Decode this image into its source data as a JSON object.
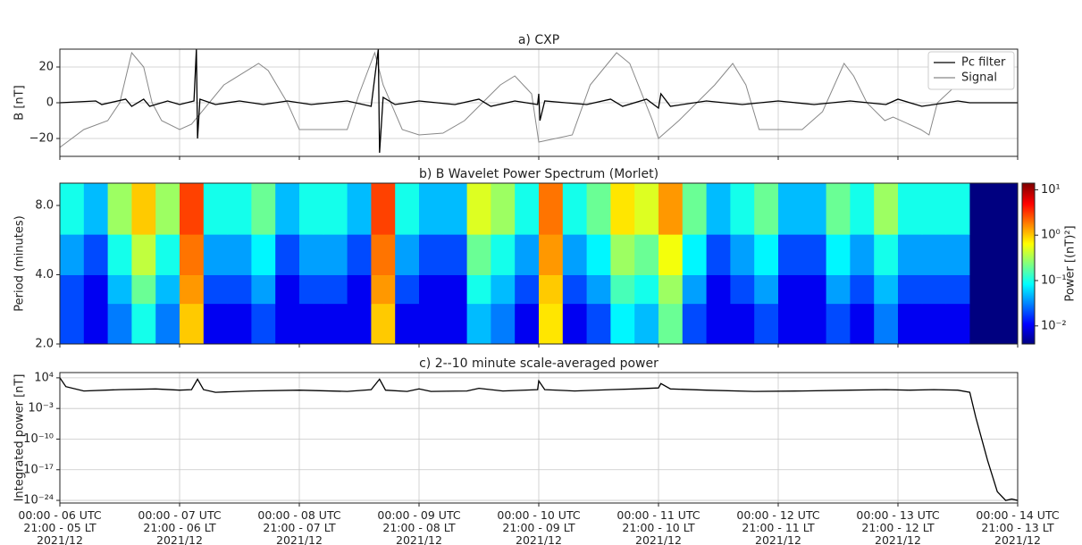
{
  "chart_data": [
    {
      "type": "line",
      "title": "a) CXP",
      "ylabel": "B [nT]",
      "xlim": [
        0,
        8
      ],
      "xticks": [
        0,
        1,
        2,
        3,
        4,
        5,
        6,
        7,
        8
      ],
      "ylim": [
        -30,
        30
      ],
      "yticks": [
        {
          "value": -20,
          "label": "−20"
        },
        0,
        20
      ],
      "grid": true,
      "legend": "upper right",
      "series": [
        {
          "name": "Pc filter",
          "color": "#000000",
          "x": [
            0,
            0.3,
            0.35,
            0.55,
            0.6,
            0.7,
            0.75,
            0.9,
            1.0,
            1.12,
            1.14,
            1.15,
            1.17,
            1.3,
            1.5,
            1.7,
            1.9,
            2.1,
            2.4,
            2.6,
            2.66,
            2.67,
            2.7,
            2.8,
            3.0,
            3.3,
            3.5,
            3.6,
            3.8,
            3.99,
            4.0,
            4.01,
            4.05,
            4.4,
            4.6,
            4.7,
            4.9,
            5.0,
            5.02,
            5.1,
            5.4,
            5.7,
            6.0,
            6.3,
            6.6,
            6.9,
            7.0,
            7.2,
            7.5,
            7.6,
            8
          ],
          "values": [
            0,
            1,
            -1,
            2,
            -2,
            2,
            -2,
            1,
            -1,
            1,
            30,
            -20,
            2,
            -1,
            1,
            -1,
            1,
            -1,
            1,
            -2,
            30,
            -28,
            3,
            -1,
            1,
            -1,
            2,
            -2,
            1,
            -1,
            5,
            -10,
            1,
            -1,
            2,
            -2,
            2,
            -3,
            5,
            -2,
            1,
            -1,
            1,
            -1,
            1,
            -1,
            2,
            -2,
            1,
            0,
            0
          ]
        },
        {
          "name": "Signal",
          "color": "#888888",
          "x": [
            0,
            0.2,
            0.4,
            0.5,
            0.6,
            0.7,
            0.77,
            0.85,
            1.0,
            1.1,
            1.37,
            1.66,
            1.74,
            1.9,
            2.0,
            2.4,
            2.5,
            2.63,
            2.7,
            2.86,
            3.0,
            3.2,
            3.38,
            3.53,
            3.68,
            3.8,
            3.94,
            4.0,
            4.28,
            4.43,
            4.65,
            4.76,
            4.95,
            5.0,
            5.17,
            5.47,
            5.62,
            5.73,
            5.84,
            6.2,
            6.37,
            6.55,
            6.63,
            6.74,
            6.89,
            6.96,
            7.19,
            7.26,
            7.33,
            7.49,
            7.6
          ],
          "values": [
            -25,
            -15,
            -10,
            0,
            28,
            20,
            0,
            -10,
            -15,
            -12,
            10,
            22,
            18,
            0,
            -15,
            -15,
            5,
            28,
            10,
            -15,
            -18,
            -17,
            -10,
            0,
            10,
            15,
            5,
            -22,
            -18,
            10,
            28,
            22,
            -10,
            -20,
            -10,
            10,
            22,
            10,
            -15,
            -15,
            -5,
            22,
            15,
            0,
            -10,
            -8,
            -15,
            -18,
            0,
            10,
            15
          ]
        }
      ]
    },
    {
      "type": "heatmap",
      "title": "b) B Wavelet Power Spectrum (Morlet)",
      "ylabel": "Period (minutes)",
      "xlim": [
        0,
        8
      ],
      "xticks": [
        0,
        1,
        2,
        3,
        4,
        5,
        6,
        7,
        8
      ],
      "ylim": [
        2,
        10
      ],
      "ylog": true,
      "yticks": [
        {
          "value": 2,
          "label": "2.0"
        },
        {
          "value": 4,
          "label": "4.0"
        },
        {
          "value": 8,
          "label": "8.0"
        }
      ],
      "x_bins": [
        0,
        0.2,
        0.4,
        0.6,
        0.8,
        1.0,
        1.2,
        1.4,
        1.6,
        1.8,
        2.0,
        2.2,
        2.4,
        2.6,
        2.8,
        3.0,
        3.2,
        3.4,
        3.6,
        3.8,
        4.0,
        4.2,
        4.4,
        4.6,
        4.8,
        5.0,
        5.2,
        5.4,
        5.6,
        5.8,
        6.0,
        6.2,
        6.4,
        6.6,
        6.8,
        7.0,
        7.2,
        7.4,
        7.6,
        7.8,
        8.0
      ],
      "y_bins": [
        2,
        3,
        4,
        6,
        10
      ],
      "z": [
        [
          0.02,
          0.01,
          0.03,
          0.1,
          0.03,
          1,
          0.01,
          0.01,
          0.02,
          0.01,
          0.01,
          0.01,
          0.01,
          1,
          0.01,
          0.01,
          0.01,
          0.05,
          0.03,
          0.01,
          0.8,
          0.01,
          0.02,
          0.08,
          0.05,
          0.2,
          0.02,
          0.01,
          0.01,
          0.02,
          0.01,
          0.01,
          0.02,
          0.01,
          0.03,
          0.01,
          0.01,
          0.01,
          0.004,
          0.004
        ],
        [
          0.02,
          0.01,
          0.05,
          0.2,
          0.05,
          1.5,
          0.02,
          0.02,
          0.04,
          0.01,
          0.02,
          0.02,
          0.01,
          1.5,
          0.02,
          0.01,
          0.01,
          0.1,
          0.05,
          0.02,
          1,
          0.02,
          0.04,
          0.15,
          0.1,
          0.3,
          0.04,
          0.01,
          0.02,
          0.04,
          0.01,
          0.01,
          0.04,
          0.02,
          0.05,
          0.02,
          0.02,
          0.02,
          0.004,
          0.004
        ],
        [
          0.04,
          0.02,
          0.1,
          0.4,
          0.1,
          2,
          0.04,
          0.04,
          0.08,
          0.02,
          0.04,
          0.04,
          0.02,
          2,
          0.04,
          0.02,
          0.02,
          0.2,
          0.1,
          0.04,
          1.5,
          0.04,
          0.08,
          0.3,
          0.2,
          0.6,
          0.08,
          0.02,
          0.04,
          0.08,
          0.02,
          0.02,
          0.08,
          0.04,
          0.1,
          0.04,
          0.04,
          0.04,
          0.004,
          0.004
        ],
        [
          0.1,
          0.05,
          0.3,
          1,
          0.3,
          3,
          0.1,
          0.1,
          0.2,
          0.05,
          0.1,
          0.1,
          0.05,
          3,
          0.1,
          0.05,
          0.05,
          0.5,
          0.3,
          0.1,
          2,
          0.1,
          0.2,
          0.8,
          0.5,
          1.5,
          0.2,
          0.05,
          0.1,
          0.2,
          0.05,
          0.05,
          0.2,
          0.1,
          0.3,
          0.1,
          0.1,
          0.1,
          0.004,
          0.004
        ]
      ],
      "colorbar": {
        "label": "Power [(nT)²]",
        "log": true,
        "colormap": "jet",
        "lim": [
          0.004,
          14
        ],
        "ticks": [
          {
            "value": 0.01,
            "label": "10⁻²"
          },
          {
            "value": 0.1,
            "label": "10⁻¹"
          },
          {
            "value": 1,
            "label": "10⁰"
          },
          {
            "value": 10,
            "label": "10¹"
          }
        ]
      }
    },
    {
      "type": "line",
      "title": "c) 2--10 minute scale-averaged power",
      "ylabel": "Integrated power [nT]",
      "xlim": [
        0,
        8
      ],
      "xticks": [
        {
          "value": 0,
          "label": "00:00 - 06 UTC\n21:00 - 05 LT\n2021/12"
        },
        {
          "value": 1,
          "label": "00:00 - 07 UTC\n21:00 - 06 LT\n2021/12"
        },
        {
          "value": 2,
          "label": "00:00 - 08 UTC\n21:00 - 07 LT\n2021/12"
        },
        {
          "value": 3,
          "label": "00:00 - 09 UTC\n21:00 - 08 LT\n2021/12"
        },
        {
          "value": 4,
          "label": "00:00 - 10 UTC\n21:00 - 09 LT\n2021/12"
        },
        {
          "value": 5,
          "label": "00:00 - 11 UTC\n21:00 - 10 LT\n2021/12"
        },
        {
          "value": 6,
          "label": "00:00 - 12 UTC\n21:00 - 11 LT\n2021/12"
        },
        {
          "value": 7,
          "label": "00:00 - 13 UTC\n21:00 - 12 LT\n2021/12"
        },
        {
          "value": 8,
          "label": "00:00 - 14 UTC\n21:00 - 13 LT\n2021/12"
        }
      ],
      "ylim": [
        2.5e-25,
        160000.0
      ],
      "ylog": true,
      "yticks": [
        {
          "value": 1e-24,
          "label": "10⁻²⁴"
        },
        {
          "value": 1e-17,
          "label": "10⁻¹⁷"
        },
        {
          "value": 1e-10,
          "label": "10⁻¹⁰"
        },
        {
          "value": 0.001,
          "label": "10⁻³"
        },
        {
          "value": 10000,
          "label": "10⁴"
        }
      ],
      "grid": true,
      "series": [
        {
          "color": "#000000",
          "x": [
            0,
            0.05,
            0.2,
            0.5,
            0.8,
            1.0,
            1.1,
            1.15,
            1.2,
            1.3,
            1.6,
            2.0,
            2.4,
            2.6,
            2.67,
            2.72,
            2.9,
            3.0,
            3.1,
            3.4,
            3.5,
            3.7,
            3.99,
            4.0,
            4.05,
            4.3,
            4.6,
            4.8,
            5.0,
            5.02,
            5.1,
            5.4,
            5.8,
            6.2,
            6.6,
            6.9,
            7.1,
            7.3,
            7.5,
            7.6,
            7.65,
            7.75,
            7.83,
            7.9,
            7.95,
            8.0
          ],
          "values": [
            10000,
            100,
            10,
            20,
            30,
            15,
            20,
            5000,
            20,
            5,
            10,
            15,
            8,
            20,
            5000,
            15,
            8,
            30,
            8,
            10,
            40,
            10,
            20,
            2000,
            20,
            10,
            20,
            30,
            50,
            500,
            30,
            15,
            8,
            10,
            15,
            20,
            15,
            20,
            15,
            5,
            1e-05,
            1e-15,
            1e-22,
            1e-24,
            2e-24,
            1e-24
          ]
        }
      ]
    }
  ]
}
